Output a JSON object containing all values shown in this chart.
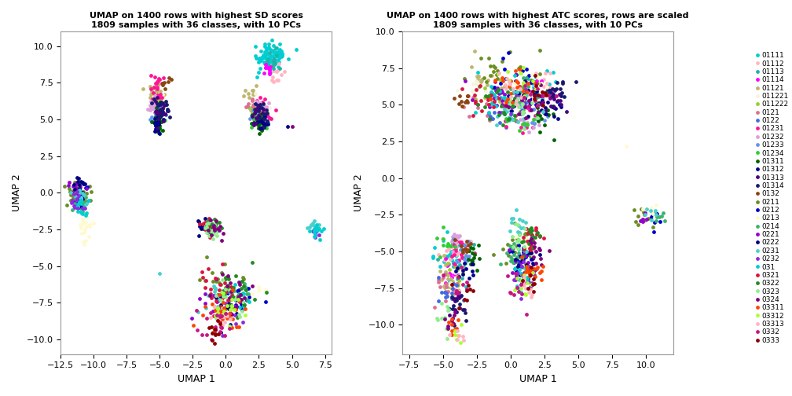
{
  "title1": "UMAP on 1400 rows with highest SD scores\n1809 samples with 36 classes, with 10 PCs",
  "title2": "UMAP on 1400 rows with highest ATC scores, rows are scaled\n1809 samples with 36 classes, with 10 PCs",
  "xlabel": "UMAP 1",
  "ylabel": "UMAP 2",
  "classes": [
    "01111",
    "01112",
    "01113",
    "01114",
    "01121",
    "011221",
    "011222",
    "0121",
    "0122",
    "01231",
    "01232",
    "01233",
    "01234",
    "01311",
    "01312",
    "01313",
    "01314",
    "0132",
    "0211",
    "0212",
    "0213",
    "0214",
    "0221",
    "0222",
    "0231",
    "0232",
    "031",
    "0321",
    "0322",
    "0323",
    "0324",
    "03311",
    "03312",
    "03313",
    "0332",
    "0333"
  ],
  "colors": [
    "#00CED1",
    "#FFB6C1",
    "#20B2AA",
    "#FF00FF",
    "#BDB76B",
    "#F5F5DC",
    "#9ACD32",
    "#DB7093",
    "#4169E1",
    "#FF1493",
    "#DDA0DD",
    "#6495ED",
    "#32CD32",
    "#006400",
    "#00008B",
    "#4B0082",
    "#191970",
    "#8B4513",
    "#6B8E23",
    "#0000CD",
    "#FFFACD",
    "#3CB371",
    "#9400D3",
    "#000080",
    "#48D1CC",
    "#8A2BE2",
    "#00CED1",
    "#DC143C",
    "#228B22",
    "#90EE90",
    "#800080",
    "#FF4500",
    "#ADFF2F",
    "#FFB6C1",
    "#C71585",
    "#8B0000"
  ],
  "plot1_xlim": [
    -12.5,
    8
  ],
  "plot1_ylim": [
    -11,
    11
  ],
  "plot2_xlim": [
    -8,
    12
  ],
  "plot2_ylim": [
    -12,
    10
  ],
  "legend_fontsize": 6.5,
  "point_size": 12,
  "title_fontsize": 8,
  "axis_fontsize": 9,
  "tick_fontsize": 8
}
